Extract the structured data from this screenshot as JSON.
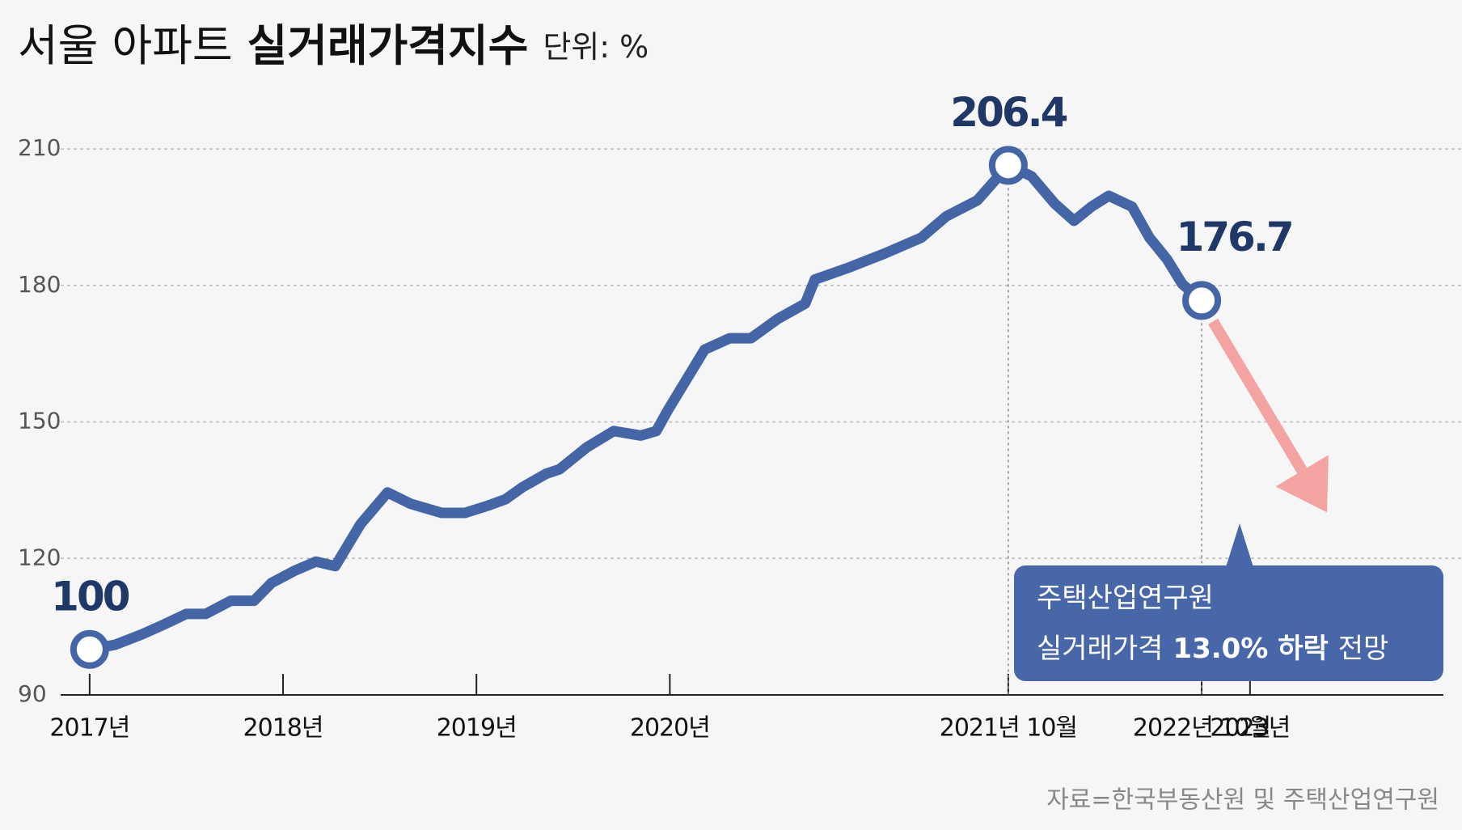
{
  "chart_data": {
    "type": "line",
    "title_parts": [
      "서울 아파트",
      "실거래가격지수"
    ],
    "unit_label": "단위: %",
    "source": "자료=한국부동산원 및 주택산업연구원",
    "x": [
      2017.0,
      2017.13,
      2017.27,
      2017.38,
      2017.5,
      2017.6,
      2017.73,
      2017.85,
      2017.94,
      2018.06,
      2018.17,
      2018.27,
      2018.4,
      2018.54,
      2018.66,
      2018.82,
      2018.94,
      2019.06,
      2019.15,
      2019.24,
      2019.36,
      2019.43,
      2019.57,
      2019.71,
      2019.85,
      2019.93,
      2019.99,
      2020.18,
      2020.31,
      2020.42,
      2020.56,
      2020.7,
      2020.75,
      2020.93,
      2021.11,
      2021.3,
      2021.43,
      2021.59,
      2021.75,
      2021.87,
      2021.99,
      2022.09,
      2022.18,
      2022.27,
      2022.39,
      2022.48,
      2022.57,
      2022.65,
      2022.75
    ],
    "series": [
      {
        "name": "서울 아파트 실거래가격지수",
        "color": "#4566a6",
        "values": [
          100,
          101,
          103.3,
          105.4,
          107.8,
          107.8,
          110.7,
          110.7,
          114.6,
          117.3,
          119.3,
          118.3,
          127.5,
          134.5,
          132,
          130,
          130,
          131.6,
          133,
          135.7,
          138.6,
          139.6,
          144.4,
          148,
          147,
          148,
          152.6,
          165.9,
          168.4,
          168.4,
          172.7,
          176,
          181.3,
          184,
          187,
          190.5,
          195.2,
          198.7,
          206.4,
          204,
          198,
          194.2,
          197.3,
          199.7,
          197.3,
          190.5,
          185.8,
          180.3,
          176.7
        ],
        "value_labels": [
          "100",
          null,
          null,
          null,
          null,
          null,
          null,
          null,
          null,
          null,
          null,
          null,
          null,
          null,
          null,
          null,
          null,
          null,
          null,
          null,
          null,
          null,
          null,
          null,
          null,
          null,
          null,
          null,
          null,
          null,
          null,
          null,
          null,
          null,
          null,
          null,
          null,
          null,
          "206.4",
          null,
          null,
          null,
          null,
          null,
          null,
          null,
          null,
          null,
          "176.7"
        ]
      }
    ],
    "xlim": [
      2016.85,
      2024
    ],
    "xticks": [
      {
        "value": 2017,
        "label": "2017년"
      },
      {
        "value": 2018,
        "label": "2018년"
      },
      {
        "value": 2019,
        "label": "2019년"
      },
      {
        "value": 2020,
        "label": "2020년"
      },
      {
        "value": 2021.75,
        "label": "2021년 10월"
      },
      {
        "value": 2022.75,
        "label": "2022년 10월"
      },
      {
        "value": 2023,
        "label": "2023년"
      }
    ],
    "ylim": [
      90,
      215
    ],
    "yticks": [
      90,
      120,
      150,
      180,
      210
    ],
    "grid": true,
    "callout": {
      "line1": "주택산업연구원",
      "line2": [
        "실거래가격",
        "13.0% 하락",
        "전망"
      ]
    }
  }
}
